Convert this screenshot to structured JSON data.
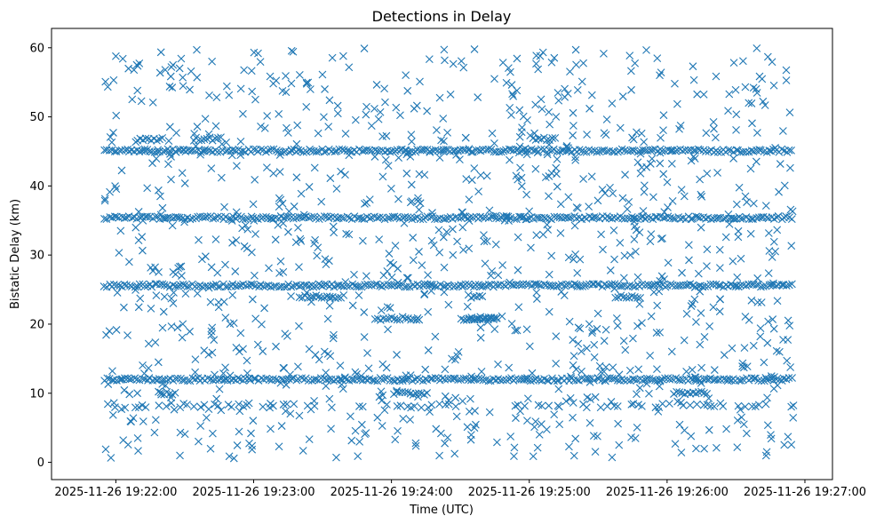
{
  "chart_data": {
    "type": "scatter",
    "title": "Detections in Delay",
    "xlabel": "Time (UTC)",
    "ylabel": "Bistatic Delay (km)",
    "x_start": "2025-11-26 19:21:55",
    "x_end": "2025-11-26 19:26:55",
    "xlim": [
      "2025-11-26 19:21:32",
      "2025-11-26 19:27:12"
    ],
    "ylim": [
      -2.5,
      62.8
    ],
    "x_ticks": [
      "2025-11-26 19:22:00",
      "2025-11-26 19:23:00",
      "2025-11-26 19:24:00",
      "2025-11-26 19:25:00",
      "2025-11-26 19:26:00",
      "2025-11-26 19:27:00"
    ],
    "y_ticks": [
      0,
      10,
      20,
      30,
      40,
      50,
      60
    ],
    "marker": "x",
    "color": "#1f77b4",
    "grid": false,
    "legend": "none",
    "tracks": [
      {
        "delay_km": 45.1,
        "coverage": "continuous"
      },
      {
        "delay_km": 35.4,
        "coverage": "continuous"
      },
      {
        "delay_km": 25.6,
        "coverage": "continuous"
      },
      {
        "delay_km": 12.0,
        "coverage": "continuous"
      },
      {
        "delay_km": 8.2,
        "coverage": "intermittent"
      },
      {
        "delay_km": 46.8,
        "coverage": "partial"
      },
      {
        "delay_km": 24.0,
        "coverage": "partial"
      },
      {
        "delay_km": 20.8,
        "coverage": "partial"
      },
      {
        "delay_km": 10.0,
        "coverage": "partial"
      }
    ],
    "background_clutter": {
      "y_range": [
        0.5,
        60
      ],
      "density": "uniform random"
    }
  }
}
